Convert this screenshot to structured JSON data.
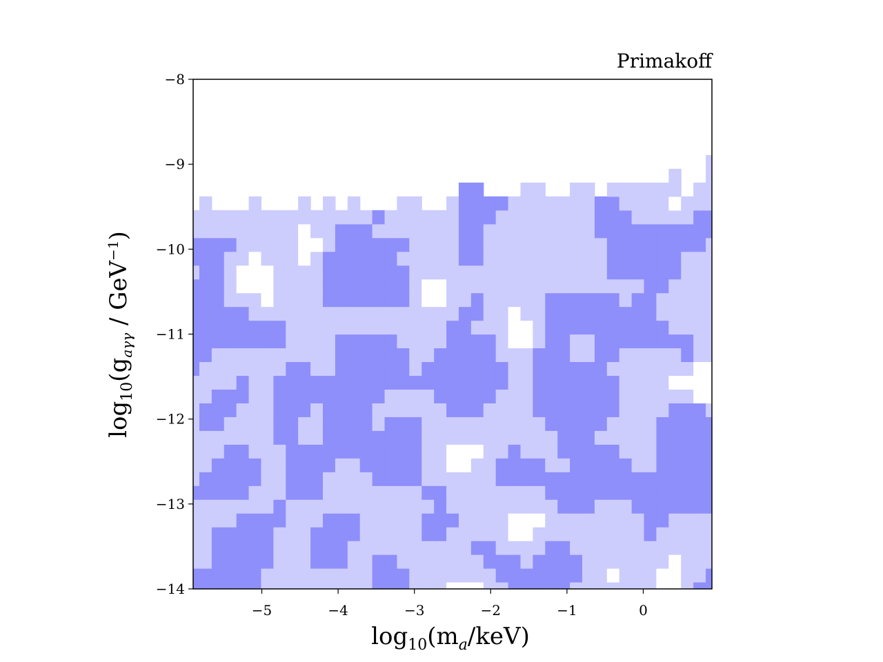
{
  "chart_data": {
    "type": "heatmap",
    "subtype": "filled-contour",
    "title": "Primakoff",
    "xlabel": {
      "main": "log",
      "sub": "10",
      "rest": "(m",
      "sub2": "a",
      "tail": "/keV)"
    },
    "ylabel": {
      "main": "log",
      "sub": "10",
      "rest": "(g",
      "sub2": "aγγ",
      "tail": " / GeV",
      "sup": "−1",
      "close": ")"
    },
    "xlim": [
      -5.9,
      0.9
    ],
    "ylim": [
      -14,
      -8
    ],
    "xticks": [
      -5,
      -4,
      -3,
      -2,
      -1,
      0
    ],
    "xtick_labels": [
      "−5",
      "−4",
      "−3",
      "−2",
      "−1",
      "0"
    ],
    "yticks": [
      -8,
      -9,
      -10,
      -11,
      -12,
      -13,
      -14
    ],
    "ytick_labels": [
      "−8",
      "−9",
      "−10",
      "−11",
      "−12",
      "−13",
      "−14"
    ],
    "levels": [
      "none",
      "light",
      "dark"
    ],
    "colors": {
      "background": "#ffffff",
      "light": "#cccdfd",
      "dark": "#8e8ffb",
      "axis": "#000000"
    },
    "boundary_top_y": [
      -9.55,
      -9.52,
      -9.6,
      -9.68,
      -9.55,
      -9.5,
      -9.55,
      -9.62,
      -9.6,
      -9.48,
      -9.55,
      -9.45,
      -9.55,
      -9.5,
      -9.62,
      -9.6,
      -9.55,
      -9.5,
      -9.45,
      -9.6,
      -9.55,
      -9.48,
      -9.35,
      -9.35,
      -9.45,
      -9.5,
      -9.42,
      -9.3,
      -9.35,
      -9.5,
      -9.45,
      -9.3,
      -9.35,
      -9.45,
      -9.3,
      -9.3,
      -9.25,
      -9.35,
      -9.3,
      -9.2,
      -9.4,
      -9.35,
      -9.05
    ],
    "noise_seed": 20240521,
    "grid": false,
    "legend": "none"
  }
}
